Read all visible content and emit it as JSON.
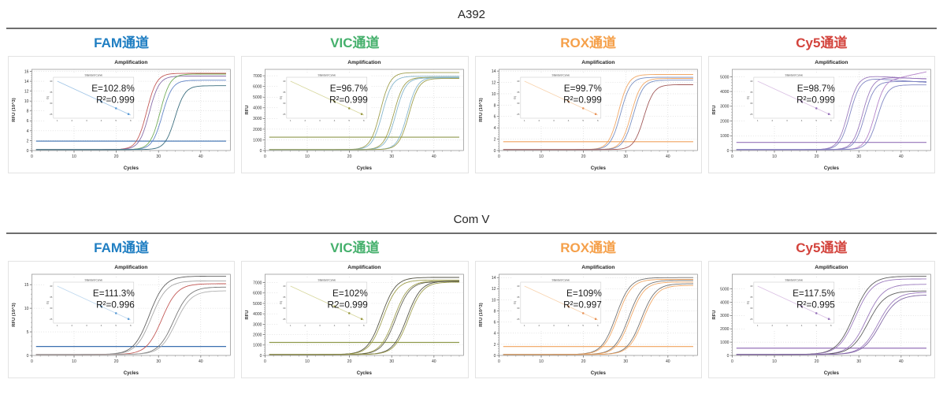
{
  "report": {
    "sections": [
      {
        "title": "A392",
        "chart_indices": [
          0,
          1,
          2,
          3
        ]
      },
      {
        "title": "Com V",
        "chart_indices": [
          4,
          5,
          6,
          7
        ]
      }
    ]
  },
  "chart_data": [
    {
      "type": "line",
      "group": "A392",
      "channel": "FAM通道",
      "channel_color": "#1F7EC2",
      "title": "Amplification",
      "xlabel": "Cycles",
      "ylabel": "RFU (10^3)",
      "xlim": [
        0,
        47
      ],
      "xticks": [
        0,
        10,
        20,
        30,
        40
      ],
      "ylim": [
        0,
        16.4
      ],
      "yticks": [
        0,
        2,
        4,
        6,
        8,
        10,
        12,
        14,
        16
      ],
      "k": 0.85,
      "threshold": {
        "value": 1.9,
        "color": "#3A6FB0"
      },
      "annotation": {
        "efficiency": "E=102.8%",
        "r_squared": "R²=0.999"
      },
      "inset": {
        "title": "Standard Curve",
        "ylabel": "Cq",
        "yticks": [
          40,
          35,
          30,
          25
        ],
        "xticks": [
          1,
          2,
          3,
          4,
          5,
          6
        ],
        "line_color": "#9DC3E6",
        "point_color": "#5B9BD5"
      },
      "curves": [
        {
          "ct": 27.2,
          "plateau": 15.6,
          "color": "#C0504D"
        },
        {
          "ct": 27.8,
          "plateau": 15.05,
          "color": "#8064A2"
        },
        {
          "ct": 30.4,
          "plateau": 15.45,
          "color": "#6AA84F"
        },
        {
          "ct": 30.9,
          "plateau": 14.2,
          "color": "#5B7FC4"
        },
        {
          "ct": 33.9,
          "plateau": 13.1,
          "color": "#2F6577"
        }
      ]
    },
    {
      "type": "line",
      "group": "A392",
      "channel": "VIC通道",
      "channel_color": "#45B06C",
      "title": "Amplification",
      "xlabel": "Cycles",
      "ylabel": "RFU",
      "xlim": [
        0,
        47
      ],
      "xticks": [
        0,
        10,
        20,
        30,
        40
      ],
      "ylim": [
        0,
        7600
      ],
      "yticks": [
        0,
        1000,
        2000,
        3000,
        4000,
        5000,
        6000,
        7000
      ],
      "k": 0.85,
      "threshold": {
        "value": 1250,
        "color": "#8F9A4D"
      },
      "annotation": {
        "efficiency": "E=96.7%",
        "r_squared": "R²=0.999"
      },
      "inset": {
        "title": "Standard Curve",
        "ylabel": "Cq",
        "yticks": [
          40,
          35,
          30,
          25
        ],
        "xticks": [
          1,
          2,
          3,
          4,
          5,
          6
        ],
        "line_color": "#D6D69A",
        "point_color": "#9A9A45"
      },
      "curves": [
        {
          "ct": 27.3,
          "plateau": 7300,
          "color": "#9A9A45"
        },
        {
          "ct": 27.8,
          "plateau": 6950,
          "color": "#7FB2C9"
        },
        {
          "ct": 30.5,
          "plateau": 6850,
          "color": "#9A9A45"
        },
        {
          "ct": 31.0,
          "plateau": 6800,
          "color": "#7FB2C9"
        },
        {
          "ct": 33.7,
          "plateau": 6850,
          "color": "#7FB2C9"
        },
        {
          "ct": 34.1,
          "plateau": 6750,
          "color": "#9A9A45"
        }
      ]
    },
    {
      "type": "line",
      "group": "A392",
      "channel": "ROX通道",
      "channel_color": "#F5A04A",
      "title": "Amplification",
      "xlabel": "Cycles",
      "ylabel": "RFU (10^3)",
      "xlim": [
        0,
        47
      ],
      "xticks": [
        0,
        10,
        20,
        30,
        40
      ],
      "ylim": [
        0,
        14.3
      ],
      "yticks": [
        0,
        2,
        4,
        6,
        8,
        10,
        12,
        14
      ],
      "k": 0.85,
      "threshold": {
        "value": 1.55,
        "color": "#F0A35E"
      },
      "annotation": {
        "efficiency": "E=99.7%",
        "r_squared": "R²=0.999"
      },
      "inset": {
        "title": "Standard Curve",
        "ylabel": "Cq",
        "yticks": [
          40,
          35,
          30,
          25
        ],
        "xticks": [
          1,
          2,
          3,
          4,
          5,
          6
        ],
        "line_color": "#F8D2AC",
        "point_color": "#E8935A"
      },
      "curves": [
        {
          "ct": 28.3,
          "plateau": 13.4,
          "color": "#F0A35E"
        },
        {
          "ct": 28.8,
          "plateau": 12.9,
          "color": "#7189BF"
        },
        {
          "ct": 31.3,
          "plateau": 12.7,
          "color": "#F0A35E"
        },
        {
          "ct": 31.8,
          "plateau": 12.4,
          "color": "#7189BF"
        },
        {
          "ct": 34.3,
          "plateau": 11.6,
          "color": "#9C5050"
        }
      ]
    },
    {
      "type": "line",
      "group": "A392",
      "channel": "Cy5通道",
      "channel_color": "#D3433C",
      "title": "Amplification",
      "xlabel": "Cycles",
      "ylabel": "RFU",
      "xlim": [
        0,
        47
      ],
      "xticks": [
        0,
        10,
        20,
        30,
        40
      ],
      "ylim": [
        0,
        5500
      ],
      "yticks": [
        0,
        1000,
        2000,
        3000,
        4000,
        5000
      ],
      "k": 0.85,
      "threshold": {
        "value": 550,
        "color": "#9673B9"
      },
      "annotation": {
        "efficiency": "E=98.7%",
        "r_squared": "R²=0.999"
      },
      "inset": {
        "title": "Standard Curve",
        "ylabel": "Cq",
        "yticks": [
          40,
          35,
          30,
          25
        ],
        "xticks": [
          1,
          2,
          3,
          4,
          5,
          6
        ],
        "line_color": "#D9BFE3",
        "point_color": "#9673B9"
      },
      "curves": [
        {
          "ct": 27.4,
          "plateau": 5050,
          "color": "#9673B9",
          "drift": -15
        },
        {
          "ct": 27.9,
          "plateau": 4880,
          "color": "#7A7FC0",
          "drift": -20
        },
        {
          "ct": 30.9,
          "plateau": 4950,
          "color": "#9673B9",
          "drift": -8
        },
        {
          "ct": 31.4,
          "plateau": 4680,
          "color": "#7A7FC0"
        },
        {
          "ct": 33.8,
          "plateau": 4900,
          "color": "#B07CC6",
          "drift": 60
        },
        {
          "ct": 34.4,
          "plateau": 4450,
          "color": "#7A7FC0"
        }
      ]
    },
    {
      "type": "line",
      "group": "Com V",
      "channel": "FAM通道",
      "channel_color": "#1F7EC2",
      "title": "Amplification",
      "xlabel": "Cycles",
      "ylabel": "RFU (10^3)",
      "xlim": [
        0,
        47
      ],
      "xticks": [
        0,
        10,
        20,
        30,
        40
      ],
      "ylim": [
        0,
        17.2
      ],
      "yticks": [
        0,
        5,
        10,
        15
      ],
      "k": 0.55,
      "threshold": {
        "value": 1.9,
        "color": "#3A6FB0"
      },
      "annotation": {
        "efficiency": "E=111.3%",
        "r_squared": "R²=0.996"
      },
      "inset": {
        "title": "Standard Curve",
        "ylabel": "Cq",
        "yticks": [
          40,
          35,
          30,
          25
        ],
        "xticks": [
          1,
          2,
          3,
          4,
          5,
          6
        ],
        "line_color": "#BDD7EE",
        "point_color": "#5B9BD5"
      },
      "curves": [
        {
          "ct": 27.8,
          "plateau": 16.8,
          "color": "#5A5A5A"
        },
        {
          "ct": 28.3,
          "plateau": 15.8,
          "color": "#A0A0A0"
        },
        {
          "ct": 30.8,
          "plateau": 15.2,
          "color": "#C0504D"
        },
        {
          "ct": 33.6,
          "plateau": 14.5,
          "color": "#707070"
        },
        {
          "ct": 34.1,
          "plateau": 13.7,
          "color": "#ABABAB"
        }
      ]
    },
    {
      "type": "line",
      "group": "Com V",
      "channel": "VIC通道",
      "channel_color": "#45B06C",
      "title": "Amplification",
      "xlabel": "Cycles",
      "ylabel": "RFU",
      "xlim": [
        0,
        47
      ],
      "xticks": [
        0,
        10,
        20,
        30,
        40
      ],
      "ylim": [
        0,
        7800
      ],
      "yticks": [
        0,
        1000,
        2000,
        3000,
        4000,
        5000,
        6000,
        7000
      ],
      "k": 0.6,
      "threshold": {
        "value": 1250,
        "color": "#8F9A4D"
      },
      "annotation": {
        "efficiency": "E=102%",
        "r_squared": "R2=0.999"
      },
      "inset": {
        "title": "Standard Curve",
        "ylabel": "Cq",
        "yticks": [
          40,
          35,
          30,
          25
        ],
        "xticks": [
          1,
          2,
          3,
          4,
          5,
          6
        ],
        "line_color": "#D6D69A",
        "point_color": "#9A9A45"
      },
      "curves": [
        {
          "ct": 27.6,
          "plateau": 7500,
          "color": "#4A4A3A"
        },
        {
          "ct": 28.0,
          "plateau": 7250,
          "color": "#9A9A45"
        },
        {
          "ct": 30.6,
          "plateau": 7150,
          "color": "#9A9A45"
        },
        {
          "ct": 31.0,
          "plateau": 7100,
          "color": "#5A5A4A"
        },
        {
          "ct": 33.6,
          "plateau": 7150,
          "color": "#4A4A3A"
        },
        {
          "ct": 34.0,
          "plateau": 7050,
          "color": "#9A9A45"
        }
      ]
    },
    {
      "type": "line",
      "group": "Com V",
      "channel": "ROX通道",
      "channel_color": "#F5A04A",
      "title": "Amplification",
      "xlabel": "Cycles",
      "ylabel": "RFU (10^3)",
      "xlim": [
        0,
        47
      ],
      "xticks": [
        0,
        10,
        20,
        30,
        40
      ],
      "ylim": [
        0,
        14.6
      ],
      "yticks": [
        0,
        2,
        4,
        6,
        8,
        10,
        12,
        14
      ],
      "k": 0.6,
      "threshold": {
        "value": 1.6,
        "color": "#F0A35E"
      },
      "annotation": {
        "efficiency": "E=109%",
        "r_squared": "R²=0.997"
      },
      "inset": {
        "title": "Standard Curve",
        "ylabel": "Cq",
        "yticks": [
          40,
          35,
          30,
          25
        ],
        "xticks": [
          1,
          2,
          3,
          4,
          5,
          6
        ],
        "line_color": "#F8D2AC",
        "point_color": "#E8935A"
      },
      "curves": [
        {
          "ct": 27.7,
          "plateau": 14.0,
          "color": "#6A6A6A"
        },
        {
          "ct": 28.1,
          "plateau": 13.7,
          "color": "#F0A35E"
        },
        {
          "ct": 30.7,
          "plateau": 13.5,
          "color": "#6A6A6A"
        },
        {
          "ct": 31.1,
          "plateau": 13.2,
          "color": "#F0A35E"
        },
        {
          "ct": 33.7,
          "plateau": 12.9,
          "color": "#6A6A6A"
        },
        {
          "ct": 34.1,
          "plateau": 12.6,
          "color": "#F0A35E"
        }
      ]
    },
    {
      "type": "line",
      "group": "Com V",
      "channel": "Cy5通道",
      "channel_color": "#D3433C",
      "title": "Amplification",
      "xlabel": "Cycles",
      "ylabel": "RFU",
      "xlim": [
        0,
        47
      ],
      "xticks": [
        0,
        10,
        20,
        30,
        40
      ],
      "ylim": [
        0,
        6100
      ],
      "yticks": [
        0,
        1000,
        2000,
        3000,
        4000,
        5000
      ],
      "k": 0.5,
      "threshold": {
        "value": 550,
        "color": "#9673B9"
      },
      "annotation": {
        "efficiency": "E=117.5%",
        "r_squared": "R²=0.995"
      },
      "inset": {
        "title": "Standard Curve",
        "ylabel": "Cq",
        "yticks": [
          40,
          35,
          30,
          25
        ],
        "xticks": [
          1,
          2,
          3,
          4,
          5,
          6
        ],
        "line_color": "#D9BFE3",
        "point_color": "#9673B9"
      },
      "curves": [
        {
          "ct": 28.8,
          "plateau": 5950,
          "color": "#555555"
        },
        {
          "ct": 29.2,
          "plateau": 5750,
          "color": "#9673B9"
        },
        {
          "ct": 31.8,
          "plateau": 5350,
          "color": "#9673B9"
        },
        {
          "ct": 32.2,
          "plateau": 4850,
          "color": "#555555"
        },
        {
          "ct": 34.6,
          "plateau": 4750,
          "color": "#9673B9"
        },
        {
          "ct": 35.0,
          "plateau": 4550,
          "color": "#7A5FA0"
        }
      ]
    }
  ]
}
